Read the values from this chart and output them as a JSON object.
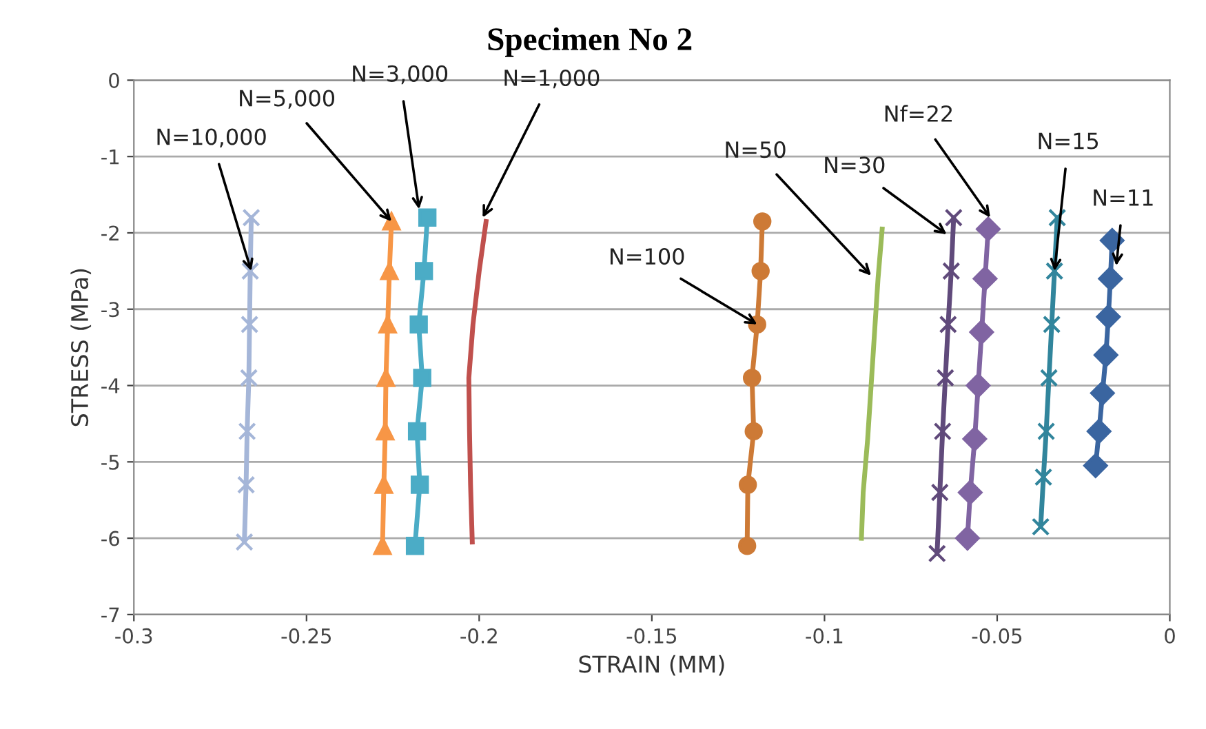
{
  "chart_data": {
    "type": "line",
    "title": "Specimen No 2",
    "xlabel": "STRAIN (MM)",
    "ylabel": "STRESS (MPa)",
    "xlim": [
      -0.3,
      0
    ],
    "ylim": [
      -7,
      0
    ],
    "xticks": [
      -0.3,
      -0.25,
      -0.2,
      -0.15,
      -0.1,
      -0.05,
      0
    ],
    "yticks": [
      -7,
      -6,
      -5,
      -4,
      -3,
      -2,
      -1,
      0
    ],
    "grid": "y",
    "legend": false,
    "series": [
      {
        "color": "#a5b6d8",
        "marker": "cross",
        "x": [
          -0.266,
          -0.2663,
          -0.2665,
          -0.2667,
          -0.2672,
          -0.2675,
          -0.268
        ],
        "values": [
          -1.8,
          -2.5,
          -3.2,
          -3.9,
          -4.6,
          -5.3,
          -6.05
        ]
      },
      {
        "color": "#f79646",
        "marker": "triangle",
        "x": [
          -0.2254,
          -0.226,
          -0.2265,
          -0.227,
          -0.2272,
          -0.2276,
          -0.228
        ],
        "values": [
          -1.85,
          -2.5,
          -3.2,
          -3.9,
          -4.6,
          -5.3,
          -6.1
        ]
      },
      {
        "color": "#4bacc6",
        "marker": "square",
        "x": [
          -0.215,
          -0.216,
          -0.2175,
          -0.2165,
          -0.218,
          -0.2172,
          -0.2186
        ],
        "values": [
          -1.8,
          -2.5,
          -3.2,
          -3.9,
          -4.6,
          -5.3,
          -6.1
        ]
      },
      {
        "color": "#c0504d",
        "marker": "none",
        "x": [
          -0.198,
          -0.2,
          -0.2018,
          -0.203,
          -0.2028,
          -0.2025,
          -0.202
        ],
        "values": [
          -1.85,
          -2.5,
          -3.2,
          -3.9,
          -4.6,
          -5.3,
          -6.05
        ]
      },
      {
        "color": "#cd7a36",
        "marker": "circle",
        "x": [
          -0.118,
          -0.1185,
          -0.1195,
          -0.121,
          -0.1205,
          -0.1222,
          -0.1224
        ],
        "values": [
          -1.85,
          -2.5,
          -3.2,
          -3.9,
          -4.6,
          -5.3,
          -6.1
        ]
      },
      {
        "color": "#9bbb59",
        "marker": "none",
        "x": [
          -0.0833,
          -0.0845,
          -0.0855,
          -0.0865,
          -0.0875,
          -0.0888,
          -0.0893
        ],
        "values": [
          -1.95,
          -2.6,
          -3.3,
          -4.0,
          -4.7,
          -5.4,
          -6.0
        ]
      },
      {
        "color": "#604a7b",
        "marker": "cross",
        "x": [
          -0.0626,
          -0.0633,
          -0.0642,
          -0.065,
          -0.0658,
          -0.0666,
          -0.0674
        ],
        "values": [
          -1.8,
          -2.5,
          -3.2,
          -3.9,
          -4.6,
          -5.4,
          -6.2
        ]
      },
      {
        "color": "#8064a2",
        "marker": "diamond",
        "x": [
          -0.0526,
          -0.0535,
          -0.0545,
          -0.0555,
          -0.0565,
          -0.0578,
          -0.0586
        ],
        "values": [
          -1.95,
          -2.6,
          -3.3,
          -4.0,
          -4.7,
          -5.4,
          -6.0
        ]
      },
      {
        "color": "#31859c",
        "marker": "cross",
        "x": [
          -0.0326,
          -0.0334,
          -0.0342,
          -0.035,
          -0.0358,
          -0.0366,
          -0.0374
        ],
        "values": [
          -1.8,
          -2.5,
          -3.2,
          -3.9,
          -4.6,
          -5.2,
          -5.85
        ]
      },
      {
        "color": "#3a65a0",
        "marker": "diamond",
        "x": [
          -0.0167,
          -0.0172,
          -0.0178,
          -0.0185,
          -0.0195,
          -0.0205,
          -0.0215
        ],
        "values": [
          -2.1,
          -2.6,
          -3.1,
          -3.6,
          -4.1,
          -4.6,
          -5.05
        ]
      }
    ],
    "annotations": [
      {
        "text": "N=10,000",
        "x": -0.266,
        "y": -2.5
      },
      {
        "text": "N=5,000",
        "x": -0.2254,
        "y": -1.85
      },
      {
        "text": "N=3,000",
        "x": -0.2174,
        "y": -1.69
      },
      {
        "text": "N=1,000",
        "x": -0.199,
        "y": -1.8
      },
      {
        "text": "N=100",
        "x": -0.1195,
        "y": -3.2
      },
      {
        "text": "N=50",
        "x": -0.0865,
        "y": -2.56
      },
      {
        "text": "N=30",
        "x": -0.0646,
        "y": -2.02
      },
      {
        "text": "Nf=22",
        "x": -0.052,
        "y": -1.8
      },
      {
        "text": "N=15",
        "x": -0.0334,
        "y": -2.5
      },
      {
        "text": "N=11",
        "x": -0.0155,
        "y": -2.43
      }
    ]
  }
}
